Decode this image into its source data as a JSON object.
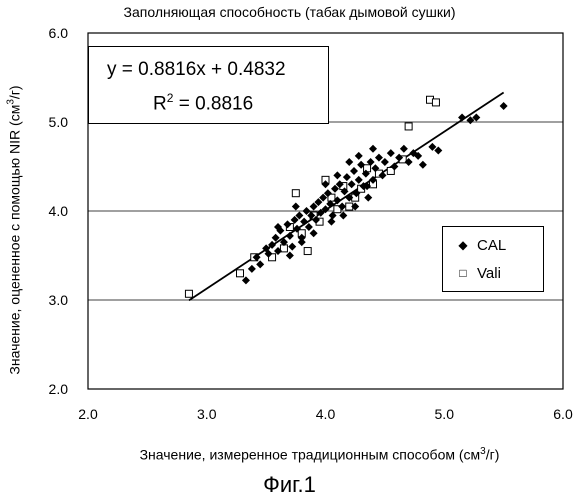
{
  "figure": {
    "title": "Заполняющая способность (табак дымовой сушки)",
    "caption": "Фиг.1"
  },
  "equation": {
    "line1": "y = 0.8816x + 0.4832",
    "line2_prefix": "R",
    "line2_sup": "2",
    "line2_rest": " = 0.8816"
  },
  "legend": {
    "cal_label": "CAL",
    "vali_label": "Vali",
    "cal_icon": "filled-diamond",
    "vali_icon": "hollow-square"
  },
  "axes": {
    "xlabel_pre": "Значение, измеренное традиционным способом (см",
    "xlabel_sup": "3",
    "xlabel_post": "/г)",
    "ylabel_pre": "Значение, оцененное с помощью NIR (см",
    "ylabel_sup": "3",
    "ylabel_post": "/г)"
  },
  "chart_data": {
    "type": "scatter",
    "title": "Заполняющая способность (табак дымовой сушки)",
    "xlabel": "Значение, измеренное традиционным способом (см3/г)",
    "ylabel": "Значение, оцененное с помощью NIR (см3/г)",
    "xlim": [
      2.0,
      6.0
    ],
    "ylim": [
      2.0,
      6.0
    ],
    "xticks": [
      "2.0",
      "3.0",
      "4.0",
      "5.0",
      "6.0"
    ],
    "yticks": [
      "2.0",
      "3.0",
      "4.0",
      "5.0",
      "6.0"
    ],
    "grid": "horizontal",
    "legend_position": "right, mid-lower",
    "trendline": {
      "slope": 0.8816,
      "intercept": 0.4832,
      "x_range": [
        2.85,
        5.5
      ]
    },
    "series": [
      {
        "name": "CAL",
        "marker": "diamond",
        "color": "#000000",
        "points": [
          [
            3.33,
            3.22
          ],
          [
            3.38,
            3.35
          ],
          [
            3.42,
            3.48
          ],
          [
            3.45,
            3.4
          ],
          [
            3.5,
            3.58
          ],
          [
            3.52,
            3.52
          ],
          [
            3.55,
            3.62
          ],
          [
            3.58,
            3.7
          ],
          [
            3.6,
            3.55
          ],
          [
            3.62,
            3.78
          ],
          [
            3.65,
            3.65
          ],
          [
            3.68,
            3.85
          ],
          [
            3.7,
            3.72
          ],
          [
            3.72,
            3.6
          ],
          [
            3.74,
            3.9
          ],
          [
            3.76,
            3.8
          ],
          [
            3.78,
            3.95
          ],
          [
            3.8,
            3.7
          ],
          [
            3.82,
            3.88
          ],
          [
            3.84,
            4.0
          ],
          [
            3.86,
            3.82
          ],
          [
            3.88,
            3.95
          ],
          [
            3.9,
            4.05
          ],
          [
            3.92,
            3.9
          ],
          [
            3.94,
            4.1
          ],
          [
            3.96,
            3.98
          ],
          [
            3.98,
            4.15
          ],
          [
            4.0,
            4.02
          ],
          [
            4.02,
            4.2
          ],
          [
            4.04,
            4.08
          ],
          [
            4.06,
            3.95
          ],
          [
            4.08,
            4.25
          ],
          [
            4.1,
            4.12
          ],
          [
            4.12,
            4.3
          ],
          [
            4.14,
            4.05
          ],
          [
            4.16,
            4.22
          ],
          [
            4.18,
            4.38
          ],
          [
            4.2,
            4.15
          ],
          [
            4.22,
            4.3
          ],
          [
            4.24,
            4.45
          ],
          [
            4.26,
            4.2
          ],
          [
            4.28,
            4.35
          ],
          [
            4.3,
            4.52
          ],
          [
            4.32,
            4.28
          ],
          [
            4.34,
            4.42
          ],
          [
            4.36,
            4.15
          ],
          [
            4.38,
            4.55
          ],
          [
            4.4,
            4.35
          ],
          [
            4.42,
            4.48
          ],
          [
            4.45,
            4.6
          ],
          [
            4.48,
            4.4
          ],
          [
            4.5,
            4.55
          ],
          [
            4.55,
            4.65
          ],
          [
            4.58,
            4.5
          ],
          [
            4.62,
            4.6
          ],
          [
            4.66,
            4.7
          ],
          [
            4.7,
            4.55
          ],
          [
            4.74,
            4.65
          ],
          [
            4.78,
            4.62
          ],
          [
            4.82,
            4.52
          ],
          [
            4.9,
            4.72
          ],
          [
            4.95,
            4.68
          ],
          [
            3.9,
            3.75
          ],
          [
            4.05,
            3.88
          ],
          [
            4.15,
            3.95
          ],
          [
            4.25,
            4.05
          ],
          [
            4.35,
            4.28
          ],
          [
            3.7,
            3.5
          ],
          [
            3.8,
            3.65
          ],
          [
            4.0,
            4.3
          ],
          [
            4.1,
            4.4
          ],
          [
            4.2,
            4.55
          ],
          [
            4.28,
            4.62
          ],
          [
            4.4,
            4.7
          ],
          [
            3.6,
            3.82
          ],
          [
            3.75,
            4.05
          ],
          [
            5.15,
            5.05
          ],
          [
            5.22,
            5.02
          ],
          [
            5.27,
            5.05
          ],
          [
            5.5,
            5.18
          ]
        ]
      },
      {
        "name": "Vali",
        "marker": "square-open",
        "color": "#000000",
        "points": [
          [
            2.85,
            3.07
          ],
          [
            3.28,
            3.3
          ],
          [
            3.4,
            3.48
          ],
          [
            3.55,
            3.48
          ],
          [
            3.65,
            3.58
          ],
          [
            3.7,
            3.82
          ],
          [
            3.8,
            3.75
          ],
          [
            3.85,
            3.55
          ],
          [
            3.95,
            3.88
          ],
          [
            4.0,
            4.35
          ],
          [
            4.05,
            4.15
          ],
          [
            4.1,
            4.02
          ],
          [
            4.15,
            4.28
          ],
          [
            4.2,
            4.05
          ],
          [
            4.3,
            4.25
          ],
          [
            4.4,
            4.3
          ],
          [
            4.45,
            4.42
          ],
          [
            4.55,
            4.45
          ],
          [
            4.65,
            4.58
          ],
          [
            4.7,
            4.95
          ],
          [
            4.88,
            5.25
          ],
          [
            4.93,
            5.22
          ],
          [
            3.75,
            4.2
          ],
          [
            3.9,
            3.95
          ],
          [
            4.25,
            4.15
          ],
          [
            4.35,
            4.48
          ]
        ]
      }
    ]
  }
}
